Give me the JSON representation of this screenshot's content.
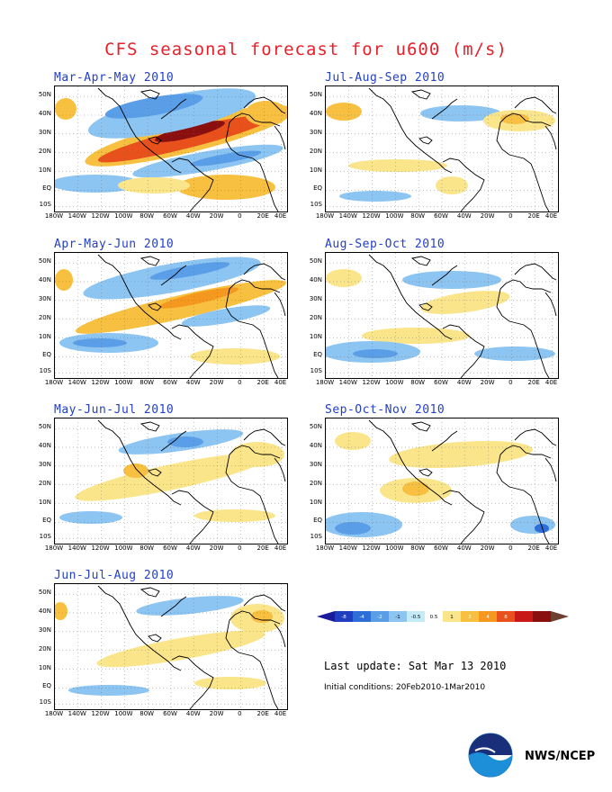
{
  "title": "CFS seasonal forecast for u600 (m/s)",
  "lat_labels": [
    "50N",
    "40N",
    "30N",
    "20N",
    "10N",
    "EQ",
    "10S"
  ],
  "lon_labels": [
    "180W",
    "140W",
    "120W",
    "100W",
    "80W",
    "60W",
    "40W",
    "20W",
    "0",
    "20E",
    "40E"
  ],
  "panels": [
    {
      "title": "Mar-Apr-May 2010",
      "column": "left",
      "row": 1
    },
    {
      "title": "Apr-May-Jun 2010",
      "column": "left",
      "row": 2
    },
    {
      "title": "May-Jun-Jul 2010",
      "column": "left",
      "row": 3
    },
    {
      "title": "Jun-Jul-Aug 2010",
      "column": "left",
      "row": 4
    },
    {
      "title": "Jul-Aug-Sep 2010",
      "column": "right",
      "row": 1
    },
    {
      "title": "Aug-Sep-Oct 2010",
      "column": "right",
      "row": 2
    },
    {
      "title": "Sep-Oct-Nov 2010",
      "column": "right",
      "row": 3
    }
  ],
  "colorbar": {
    "labels": [
      "-8",
      "-4",
      "-2",
      "-1",
      "-0.5",
      "0.5",
      "1",
      "2",
      "4",
      "8"
    ],
    "colors": [
      "#1a1a9a",
      "#1f3fc0",
      "#2d6ed8",
      "#5b9ee8",
      "#8cc4f2",
      "#c4ecf8",
      "#ffffff",
      "#fbe58a",
      "#f8c040",
      "#f59820",
      "#e8501c",
      "#c81818",
      "#8a1010",
      "#6e4030"
    ]
  },
  "last_update": "Last update: Sat Mar 13 2010",
  "initial_conditions": "Initial conditions: 20Feb2010-1Mar2010",
  "credit": "NWS/NCEP",
  "logo_text": "NOAA"
}
